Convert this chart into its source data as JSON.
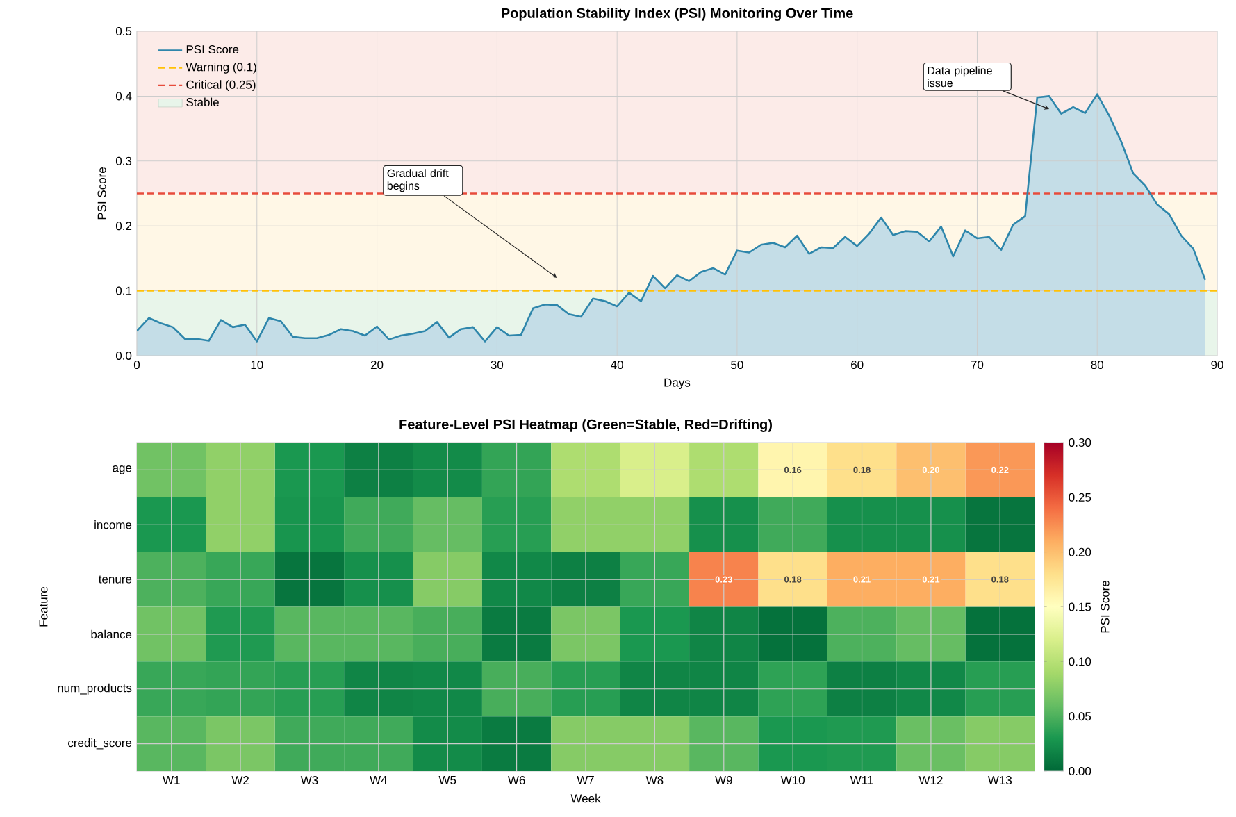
{
  "chart_data": [
    {
      "type": "area",
      "title": "Population Stability Index (PSI) Monitoring Over Time",
      "xlabel": "Days",
      "ylabel": "PSI Score",
      "x": [
        0,
        1,
        2,
        3,
        4,
        5,
        6,
        7,
        8,
        9,
        10,
        11,
        12,
        13,
        14,
        15,
        16,
        17,
        18,
        19,
        20,
        21,
        22,
        23,
        24,
        25,
        26,
        27,
        28,
        29,
        30,
        31,
        32,
        33,
        34,
        35,
        36,
        37,
        38,
        39,
        40,
        41,
        42,
        43,
        44,
        45,
        46,
        47,
        48,
        49,
        50,
        51,
        52,
        53,
        54,
        55,
        56,
        57,
        58,
        59,
        60,
        61,
        62,
        63,
        64,
        65,
        66,
        67,
        68,
        69,
        70,
        71,
        72,
        73,
        74,
        75,
        76,
        77,
        78,
        79,
        80,
        81,
        82,
        83,
        84,
        85,
        86,
        87,
        88,
        89
      ],
      "series": [
        {
          "name": "PSI Score",
          "color": "#2e86ab",
          "values": [
            0.038,
            0.058,
            0.05,
            0.044,
            0.026,
            0.026,
            0.023,
            0.055,
            0.044,
            0.048,
            0.022,
            0.058,
            0.053,
            0.029,
            0.027,
            0.027,
            0.032,
            0.041,
            0.038,
            0.031,
            0.045,
            0.025,
            0.031,
            0.034,
            0.038,
            0.052,
            0.028,
            0.041,
            0.044,
            0.022,
            0.044,
            0.031,
            0.032,
            0.073,
            0.079,
            0.078,
            0.064,
            0.06,
            0.088,
            0.084,
            0.076,
            0.097,
            0.084,
            0.123,
            0.104,
            0.124,
            0.115,
            0.129,
            0.135,
            0.125,
            0.162,
            0.159,
            0.171,
            0.174,
            0.167,
            0.185,
            0.157,
            0.167,
            0.166,
            0.183,
            0.169,
            0.188,
            0.213,
            0.186,
            0.192,
            0.191,
            0.176,
            0.199,
            0.153,
            0.193,
            0.181,
            0.183,
            0.163,
            0.202,
            0.215,
            0.398,
            0.4,
            0.373,
            0.383,
            0.374,
            0.403,
            0.37,
            0.33,
            0.281,
            0.262,
            0.233,
            0.218,
            0.185,
            0.165,
            0.117
          ]
        }
      ],
      "xlim": [
        0,
        90
      ],
      "xticks": [
        0,
        10,
        20,
        30,
        40,
        50,
        60,
        70,
        80,
        90
      ],
      "ylim": [
        0,
        0.5
      ],
      "yticks": [
        {
          "value": 0,
          "label": "0.0"
        },
        {
          "value": 0.1,
          "label": "0.1"
        },
        {
          "value": 0.2,
          "label": "0.2"
        },
        {
          "value": 0.3,
          "label": "0.3"
        },
        {
          "value": 0.4,
          "label": "0.4"
        },
        {
          "value": 0.5,
          "label": "0.5"
        }
      ],
      "ref_lines": [
        {
          "axis": "y",
          "value": 0.1,
          "label": "Warning (0.1)",
          "color": "#ffc107",
          "line_style": "dashed"
        },
        {
          "axis": "y",
          "value": 0.25,
          "label": "Critical (0.25)",
          "color": "#e74c3c",
          "line_style": "dashed"
        }
      ],
      "bands": [
        {
          "axis": "y",
          "from": 0,
          "to": 0.1,
          "label": "Stable",
          "color": "#e8f5ea"
        },
        {
          "axis": "y",
          "from": 0.1,
          "to": 0.25,
          "color": "#fff7e6"
        },
        {
          "axis": "y",
          "from": 0.25,
          "to": 0.5,
          "color": "#fcebe8"
        }
      ],
      "annotations": [
        "Gradual drift begins",
        "Data pipeline issue"
      ],
      "grid": true,
      "legend": "top left"
    },
    {
      "type": "heatmap",
      "title": "Feature-Level PSI Heatmap (Green=Stable, Red=Drifting)",
      "xlabel": "Week",
      "ylabel": "Feature",
      "clabel": "PSI Score",
      "categories": [
        "W1",
        "W2",
        "W3",
        "W4",
        "W5",
        "W6",
        "W7",
        "W8",
        "W9",
        "W10",
        "W11",
        "W12",
        "W13"
      ],
      "y_categories": [
        "age",
        "income",
        "tenure",
        "balance",
        "num_products",
        "credit_score"
      ],
      "cells": [
        [
          0.065,
          0.08,
          0.03,
          0.015,
          0.022,
          0.04,
          0.095,
          0.12,
          0.095,
          0.16,
          0.18,
          0.2,
          0.22
        ],
        [
          0.03,
          0.08,
          0.028,
          0.045,
          0.06,
          0.035,
          0.08,
          0.08,
          0.025,
          0.045,
          0.025,
          0.025,
          0.008
        ],
        [
          0.05,
          0.042,
          0.008,
          0.025,
          0.075,
          0.02,
          0.015,
          0.042,
          0.23,
          0.18,
          0.21,
          0.21,
          0.18
        ],
        [
          0.065,
          0.032,
          0.055,
          0.055,
          0.048,
          0.012,
          0.07,
          0.03,
          0.018,
          0.006,
          0.05,
          0.06,
          0.006
        ],
        [
          0.042,
          0.04,
          0.035,
          0.018,
          0.02,
          0.048,
          0.035,
          0.018,
          0.018,
          0.038,
          0.015,
          0.02,
          0.035
        ],
        [
          0.055,
          0.07,
          0.045,
          0.045,
          0.022,
          0.012,
          0.075,
          0.075,
          0.055,
          0.03,
          0.032,
          0.062,
          0.075
        ]
      ],
      "cell_labels": [
        [
          null,
          null,
          null,
          null,
          null,
          null,
          null,
          null,
          null,
          "0.16",
          "0.18",
          "0.20",
          "0.22"
        ],
        [
          null,
          null,
          null,
          null,
          null,
          null,
          null,
          null,
          null,
          null,
          null,
          null,
          null
        ],
        [
          null,
          null,
          null,
          null,
          null,
          null,
          null,
          null,
          "0.23",
          "0.18",
          "0.21",
          "0.21",
          "0.18"
        ],
        [
          null,
          null,
          null,
          null,
          null,
          null,
          null,
          null,
          null,
          null,
          null,
          null,
          null
        ],
        [
          null,
          null,
          null,
          null,
          null,
          null,
          null,
          null,
          null,
          null,
          null,
          null,
          null
        ],
        [
          null,
          null,
          null,
          null,
          null,
          null,
          null,
          null,
          null,
          null,
          null,
          null,
          null
        ]
      ],
      "clim": [
        0,
        0.3
      ],
      "cticks": [
        {
          "value": 0,
          "label": "0.00"
        },
        {
          "value": 0.05,
          "label": "0.05"
        },
        {
          "value": 0.1,
          "label": "0.10"
        },
        {
          "value": 0.15,
          "label": "0.15"
        },
        {
          "value": 0.2,
          "label": "0.20"
        },
        {
          "value": 0.25,
          "label": "0.25"
        },
        {
          "value": 0.3,
          "label": "0.30"
        }
      ],
      "grid": true
    }
  ]
}
